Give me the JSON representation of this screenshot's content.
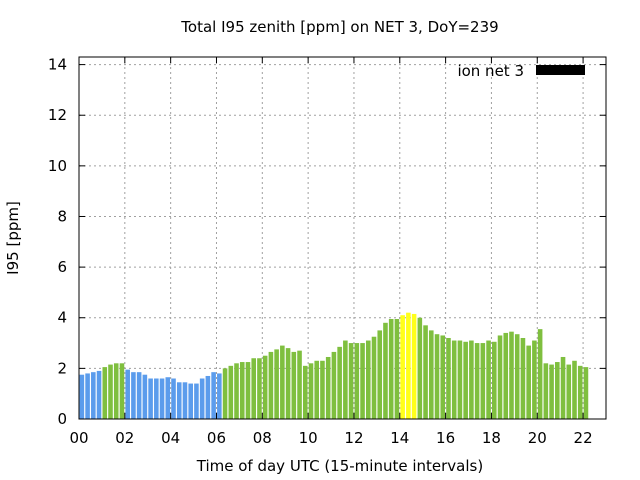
{
  "chart_data": {
    "type": "bar",
    "title": "Total I95 zenith [ppm] on NET 3, DoY=239",
    "xlabel": "Time of day UTC (15-minute intervals)",
    "ylabel": "I95 [ppm]",
    "xlim": [
      0,
      23
    ],
    "ylim": [
      0,
      14.3
    ],
    "xticks": [
      "00",
      "02",
      "04",
      "06",
      "08",
      "10",
      "12",
      "14",
      "16",
      "18",
      "20",
      "22"
    ],
    "xtick_values": [
      0,
      2,
      4,
      6,
      8,
      10,
      12,
      14,
      16,
      18,
      20,
      22
    ],
    "yticks": [
      "0",
      "2",
      "4",
      "6",
      "8",
      "10",
      "12",
      "14"
    ],
    "ytick_values": [
      0,
      2,
      4,
      6,
      8,
      10,
      12,
      14
    ],
    "grid": true,
    "legend": {
      "label": "ion net 3",
      "position": "top-right",
      "color": "#000000"
    },
    "interval_hours": 0.25,
    "bar_width_hours": 0.2,
    "colors": {
      "blue": "#5b9cec",
      "green": "#7fbf3f",
      "yellow": "#ffff1a"
    },
    "values": [
      1.75,
      1.8,
      1.85,
      1.9,
      2.05,
      2.15,
      2.2,
      2.2,
      1.95,
      1.85,
      1.85,
      1.75,
      1.6,
      1.6,
      1.6,
      1.65,
      1.6,
      1.45,
      1.45,
      1.4,
      1.4,
      1.6,
      1.7,
      1.85,
      1.8,
      2.0,
      2.1,
      2.2,
      2.25,
      2.25,
      2.4,
      2.4,
      2.5,
      2.65,
      2.75,
      2.9,
      2.8,
      2.65,
      2.7,
      2.1,
      2.2,
      2.3,
      2.3,
      2.45,
      2.65,
      2.85,
      3.1,
      3.0,
      3.0,
      3.0,
      3.1,
      3.25,
      3.5,
      3.8,
      3.95,
      3.95,
      4.1,
      4.2,
      4.15,
      4.0,
      3.7,
      3.5,
      3.35,
      3.3,
      3.2,
      3.1,
      3.1,
      3.05,
      3.1,
      3.0,
      3.0,
      3.1,
      3.05,
      3.3,
      3.4,
      3.45,
      3.35,
      3.2,
      2.9,
      3.1,
      3.55,
      2.2,
      2.15,
      2.25,
      2.45,
      2.15,
      2.3,
      2.1,
      2.05
    ],
    "bar_colors": [
      "blue",
      "blue",
      "blue",
      "blue",
      "green",
      "green",
      "green",
      "green",
      "blue",
      "blue",
      "blue",
      "blue",
      "blue",
      "blue",
      "blue",
      "blue",
      "blue",
      "blue",
      "blue",
      "blue",
      "blue",
      "blue",
      "blue",
      "blue",
      "blue",
      "green",
      "green",
      "green",
      "green",
      "green",
      "green",
      "green",
      "green",
      "green",
      "green",
      "green",
      "green",
      "green",
      "green",
      "green",
      "green",
      "green",
      "green",
      "green",
      "green",
      "green",
      "green",
      "green",
      "green",
      "green",
      "green",
      "green",
      "green",
      "green",
      "green",
      "green",
      "yellow",
      "yellow",
      "yellow",
      "green",
      "green",
      "green",
      "green",
      "green",
      "green",
      "green",
      "green",
      "green",
      "green",
      "green",
      "green",
      "green",
      "green",
      "green",
      "green",
      "green",
      "green",
      "green",
      "green",
      "green",
      "green",
      "green",
      "green",
      "green",
      "green",
      "green",
      "green",
      "green",
      "green"
    ]
  }
}
